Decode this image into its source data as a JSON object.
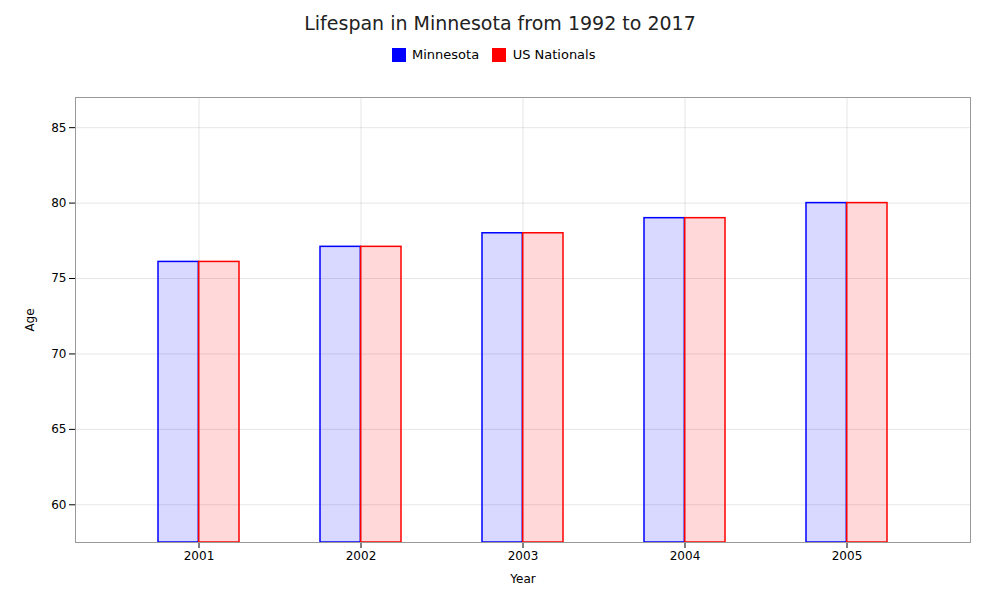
{
  "chart_data": {
    "type": "bar",
    "title": "Lifespan in Minnesota from 1992 to 2017",
    "xlabel": "Year",
    "ylabel": "Age",
    "categories": [
      "2001",
      "2002",
      "2003",
      "2004",
      "2005"
    ],
    "series": [
      {
        "name": "Minnesota",
        "color": "#0000ff",
        "values": [
          76.1,
          77.1,
          78.0,
          79.0,
          80.0
        ]
      },
      {
        "name": "US Nationals",
        "color": "#ff0000",
        "values": [
          76.1,
          77.1,
          78.0,
          79.0,
          80.0
        ]
      }
    ],
    "ylim": [
      57.5,
      87
    ],
    "yticks": [
      60,
      65,
      70,
      75,
      80,
      85
    ],
    "grid": true,
    "legend": "top"
  }
}
